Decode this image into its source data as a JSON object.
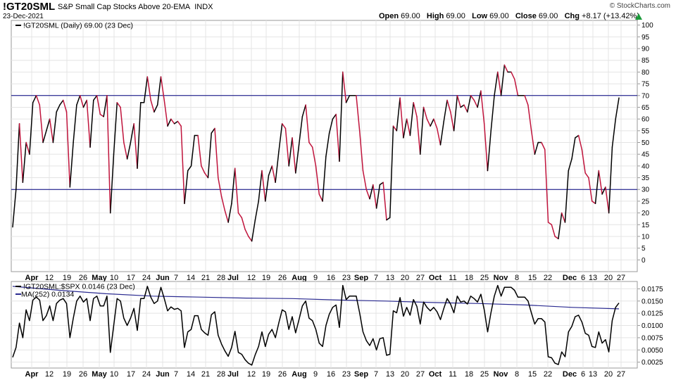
{
  "header": {
    "symbol": "!GT20SML",
    "name": "S&P Small Cap Stocks Above 20-EMA",
    "suffix": "INDX",
    "date": "23-Dec-2021",
    "copyright": "© StockCharts.com",
    "open_label": "Open",
    "open": "69.00",
    "high_label": "High",
    "high": "69.00",
    "low_label": "Low",
    "low": "69.00",
    "close_label": "Close",
    "close": "69.00",
    "chg_label": "Chg",
    "chg": "+8.17 (+13.42%)"
  },
  "colors": {
    "up": "#000000",
    "down": "#c0143c",
    "hline": "#00007f",
    "ma": "#2a2a90",
    "grid": "#e4e4e4",
    "frame": "#9a9a9a"
  },
  "chart_data": [
    {
      "type": "line",
      "legend": "!GT20SML (Daily) 69.00 (23 Dec)",
      "y_ticks": [
        0,
        5,
        10,
        15,
        20,
        25,
        30,
        35,
        40,
        45,
        50,
        55,
        60,
        65,
        70,
        75,
        80,
        85,
        90,
        95,
        100
      ],
      "ylim": [
        -5,
        102
      ],
      "reference_lines": [
        70,
        30
      ],
      "x_ticks": [
        "Apr",
        "12",
        "19",
        "26",
        "May",
        "10",
        "17",
        "24",
        "Jun",
        "7",
        "14",
        "21",
        "28",
        "Jul",
        "12",
        "19",
        "26",
        "Aug",
        "9",
        "16",
        "23",
        "Sep",
        "7",
        "13",
        "20",
        "27",
        "Oct",
        "11",
        "18",
        "25",
        "Nov",
        "8",
        "15",
        "22",
        "Dec",
        "6",
        "13",
        "20",
        "27"
      ],
      "bold_ticks": [
        "Apr",
        "May",
        "Jun",
        "Jul",
        "Aug",
        "Sep",
        "Oct",
        "Nov",
        "Dec"
      ],
      "values": [
        14,
        30,
        58,
        33,
        50,
        45,
        67,
        70,
        66,
        50,
        55,
        60,
        50,
        63,
        66,
        68,
        63,
        31,
        50,
        66,
        70,
        65,
        68,
        48,
        68,
        70,
        62,
        61,
        70,
        20,
        45,
        67,
        65,
        50,
        43,
        50,
        58,
        39,
        67,
        67,
        78,
        68,
        63,
        66,
        78,
        68,
        57,
        60,
        58,
        59,
        57,
        24,
        38,
        40,
        53,
        53,
        40,
        37,
        35,
        54,
        56,
        35,
        27,
        21,
        16,
        24,
        39,
        20,
        18,
        13,
        10,
        8,
        17,
        25,
        38,
        25,
        36,
        40,
        33,
        46,
        58,
        56,
        40,
        52,
        37,
        49,
        61,
        66,
        50,
        48,
        40,
        28,
        25,
        44,
        54,
        60,
        62,
        42,
        80,
        67,
        70,
        70,
        70,
        55,
        38,
        30,
        26,
        32,
        22,
        32,
        33,
        17,
        18,
        57,
        55,
        69,
        52,
        60,
        53,
        67,
        61,
        45,
        65,
        60,
        57,
        60,
        56,
        49,
        59,
        68,
        63,
        55,
        70,
        65,
        66,
        63,
        70,
        68,
        65,
        72,
        58,
        38,
        55,
        70,
        80,
        70,
        83,
        80,
        80,
        77,
        70,
        70,
        70,
        66,
        55,
        45,
        50,
        50,
        47,
        16,
        15,
        10,
        9,
        20,
        16,
        38,
        43,
        52,
        53,
        47,
        37,
        35,
        25,
        24,
        38,
        28,
        31,
        20,
        48,
        60,
        69
      ],
      "last_value": 69
    },
    {
      "type": "line",
      "legend_main": "!GT20SML:$SPX 0.0146 (23 Dec)",
      "legend_ma": "MA(252) 0.0134",
      "y_ticks": [
        "0.0025",
        "0.0050",
        "0.0075",
        "0.0100",
        "0.0125",
        "0.0150",
        "0.0175"
      ],
      "y_tick_values": [
        0.0025,
        0.005,
        0.0075,
        0.01,
        0.0125,
        0.015,
        0.0175
      ],
      "ylim": [
        0.0013,
        0.019
      ],
      "x_ticks": [
        "Apr",
        "12",
        "19",
        "26",
        "May",
        "10",
        "17",
        "24",
        "Jun",
        "7",
        "14",
        "21",
        "28",
        "Jul",
        "12",
        "19",
        "26",
        "Aug",
        "9",
        "16",
        "23",
        "Sep",
        "7",
        "13",
        "20",
        "27",
        "Oct",
        "11",
        "18",
        "25",
        "Nov",
        "8",
        "15",
        "22",
        "Dec",
        "6",
        "13",
        "20",
        "27"
      ],
      "bold_ticks": [
        "Apr",
        "May",
        "Jun",
        "Jul",
        "Aug",
        "Sep",
        "Oct",
        "Nov",
        "Dec"
      ],
      "values": [
        0.0035,
        0.0055,
        0.0105,
        0.0075,
        0.0132,
        0.011,
        0.0152,
        0.0158,
        0.0152,
        0.011,
        0.012,
        0.014,
        0.011,
        0.0145,
        0.0152,
        0.0155,
        0.0145,
        0.0075,
        0.0115,
        0.015,
        0.016,
        0.0148,
        0.0155,
        0.011,
        0.0155,
        0.016,
        0.014,
        0.014,
        0.016,
        0.0045,
        0.01,
        0.0155,
        0.015,
        0.0115,
        0.01,
        0.0115,
        0.0135,
        0.009,
        0.0155,
        0.0155,
        0.018,
        0.0158,
        0.0145,
        0.015,
        0.0178,
        0.0155,
        0.013,
        0.0138,
        0.0133,
        0.0135,
        0.013,
        0.0055,
        0.0087,
        0.0092,
        0.012,
        0.012,
        0.0092,
        0.0085,
        0.008,
        0.0122,
        0.0128,
        0.008,
        0.0062,
        0.0048,
        0.0037,
        0.0055,
        0.0088,
        0.0045,
        0.0041,
        0.003,
        0.0023,
        0.0019,
        0.004,
        0.0057,
        0.0087,
        0.0057,
        0.0082,
        0.0092,
        0.0075,
        0.0105,
        0.0132,
        0.0128,
        0.0092,
        0.0118,
        0.0085,
        0.0112,
        0.014,
        0.015,
        0.0115,
        0.011,
        0.0092,
        0.0064,
        0.0057,
        0.01,
        0.0123,
        0.0137,
        0.0142,
        0.0096,
        0.0182,
        0.0153,
        0.016,
        0.016,
        0.016,
        0.0126,
        0.0087,
        0.0069,
        0.0059,
        0.0073,
        0.005,
        0.0073,
        0.0075,
        0.0039,
        0.0041,
        0.013,
        0.0126,
        0.0157,
        0.0119,
        0.0137,
        0.0121,
        0.0153,
        0.0139,
        0.0103,
        0.0148,
        0.0137,
        0.013,
        0.0137,
        0.0128,
        0.0112,
        0.0135,
        0.0155,
        0.0144,
        0.0126,
        0.016,
        0.0148,
        0.015,
        0.0144,
        0.016,
        0.0155,
        0.0148,
        0.0164,
        0.0132,
        0.0087,
        0.0126,
        0.016,
        0.0182,
        0.016,
        0.0178,
        0.0178,
        0.0178,
        0.0172,
        0.0158,
        0.0158,
        0.0158,
        0.015,
        0.0126,
        0.0103,
        0.0114,
        0.0114,
        0.0107,
        0.0036,
        0.0034,
        0.0023,
        0.002,
        0.0046,
        0.0036,
        0.0087,
        0.0098,
        0.0118,
        0.0121,
        0.0107,
        0.0084,
        0.008,
        0.0057,
        0.0055,
        0.0087,
        0.0064,
        0.0071,
        0.0046,
        0.011,
        0.0137,
        0.0146
      ],
      "ma_values": [
        0.018,
        0.0172,
        0.0165,
        0.016,
        0.0158,
        0.0156,
        0.0155,
        0.0152,
        0.015,
        0.0147,
        0.0145,
        0.0142,
        0.0137,
        0.0134
      ],
      "last_value": 0.0146,
      "last_ma": 0.0134
    }
  ]
}
